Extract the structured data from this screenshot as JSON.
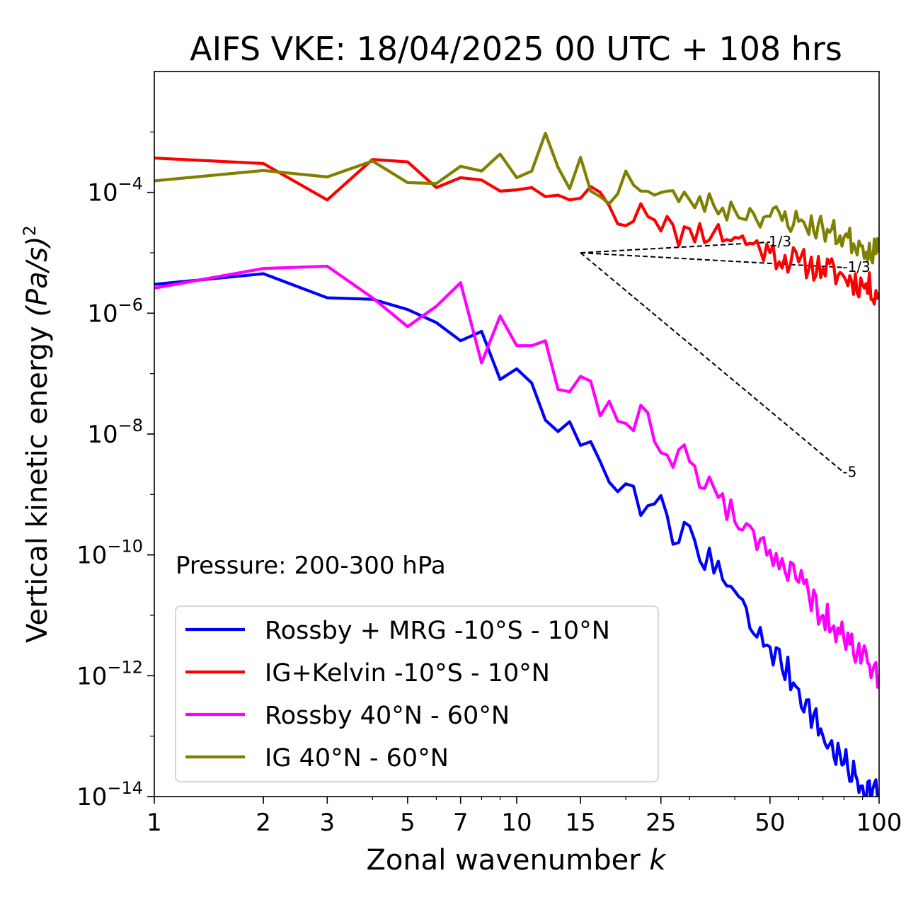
{
  "chart_data": {
    "type": "line",
    "title": "AIFS VKE: 18/04/2025 00 UTC + 108 hrs",
    "xlabel": "Zonal wavenumber",
    "xlabel_var": "k",
    "ylabel": "Vertical kinetic energy",
    "ylabel_unit": "(Pa/s)",
    "ylabel_unit_exp": "2",
    "x_scale": "log",
    "y_scale": "log",
    "xlim": [
      1,
      100
    ],
    "ylim": [
      1e-14,
      0.01
    ],
    "x_ticks": [
      1,
      2,
      3,
      5,
      7,
      10,
      15,
      25,
      50,
      100
    ],
    "x_tick_labels": [
      "1",
      "2",
      "3",
      "5",
      "7",
      "10",
      "15",
      "25",
      "50",
      "100"
    ],
    "y_ticks": [
      1e-14,
      1e-12,
      1e-10,
      1e-08,
      1e-06,
      0.0001
    ],
    "y_tick_labels": [
      {
        "base": "10",
        "exp": "−14"
      },
      {
        "base": "10",
        "exp": "−12"
      },
      {
        "base": "10",
        "exp": "−10"
      },
      {
        "base": "10",
        "exp": "−8"
      },
      {
        "base": "10",
        "exp": "−6"
      },
      {
        "base": "10",
        "exp": "−4"
      }
    ],
    "grid": false,
    "legend_position": "lower-left",
    "annotation": "Pressure: 200-300 hPa",
    "series": [
      {
        "name": "Rossby + MRG -10°S - 10°N",
        "color": "#0000ff",
        "anchors": [
          [
            1,
            3e-06
          ],
          [
            2,
            4.5e-06
          ],
          [
            3,
            1.8e-06
          ],
          [
            4,
            1.7e-06
          ],
          [
            5,
            1.15e-06
          ],
          [
            6,
            7e-07
          ],
          [
            7,
            3.5e-07
          ],
          [
            8,
            5e-07
          ],
          [
            9,
            8e-08
          ],
          [
            10,
            1.2e-07
          ],
          [
            11,
            7e-08
          ],
          [
            12,
            1.7e-08
          ],
          [
            13,
            1.1e-08
          ],
          [
            14,
            1.6e-08
          ],
          [
            15,
            6.5e-09
          ],
          [
            16,
            7.5e-09
          ],
          [
            17,
            3.5e-09
          ],
          [
            18,
            1.6e-09
          ],
          [
            20,
            1.5e-09
          ],
          [
            22,
            4.5e-10
          ],
          [
            24,
            7e-10
          ],
          [
            26,
            4.5e-10
          ],
          [
            28,
            1.6e-10
          ],
          [
            30,
            3e-10
          ],
          [
            35,
            5e-11
          ],
          [
            40,
            2.5e-11
          ],
          [
            45,
            5e-12
          ],
          [
            50,
            3e-12
          ],
          [
            60,
            6e-13
          ],
          [
            70,
            1e-13
          ],
          [
            80,
            3.5e-14
          ],
          [
            90,
            1.5e-14
          ],
          [
            100,
            1.1e-14
          ]
        ],
        "noise": 0.55,
        "seed": 7
      },
      {
        "name": "IG+Kelvin -10°S - 10°N",
        "color": "#ff0000",
        "anchors": [
          [
            1,
            0.00037
          ],
          [
            2,
            0.0003
          ],
          [
            3,
            7.5e-05
          ],
          [
            4,
            0.00035
          ],
          [
            5,
            0.00032
          ],
          [
            6,
            0.00012
          ],
          [
            7,
            0.000175
          ],
          [
            8,
            0.00016
          ],
          [
            9,
            0.000105
          ],
          [
            10,
            0.00011
          ],
          [
            11,
            0.00012
          ],
          [
            12,
            8.5e-05
          ],
          [
            13,
            9e-05
          ],
          [
            14,
            7.5e-05
          ],
          [
            15,
            8e-05
          ],
          [
            16,
            0.000125
          ],
          [
            17,
            0.0001
          ],
          [
            18,
            6e-05
          ],
          [
            20,
            2.8e-05
          ],
          [
            22,
            6.5e-05
          ],
          [
            24,
            3.5e-05
          ],
          [
            26,
            4e-05
          ],
          [
            28,
            1.3e-05
          ],
          [
            30,
            2.5e-05
          ],
          [
            35,
            2.2e-05
          ],
          [
            40,
            1.8e-05
          ],
          [
            45,
            1.4e-05
          ],
          [
            50,
            1e-05
          ],
          [
            60,
            7e-06
          ],
          [
            70,
            5.5e-06
          ],
          [
            80,
            4e-06
          ],
          [
            90,
            3e-06
          ],
          [
            100,
            2.2e-06
          ]
        ],
        "noise": 0.5,
        "seed": 11
      },
      {
        "name": "Rossby 40°N - 60°N",
        "color": "#ff00ff",
        "anchors": [
          [
            1,
            2.6e-06
          ],
          [
            2,
            5.5e-06
          ],
          [
            3,
            6e-06
          ],
          [
            4,
            1.8e-06
          ],
          [
            5,
            6e-07
          ],
          [
            6,
            1.3e-06
          ],
          [
            7,
            3.2e-06
          ],
          [
            8,
            1.5e-07
          ],
          [
            9,
            9e-07
          ],
          [
            10,
            2.9e-07
          ],
          [
            11,
            2.9e-07
          ],
          [
            12,
            3.5e-07
          ],
          [
            13,
            5.5e-08
          ],
          [
            14,
            5e-08
          ],
          [
            15,
            9e-08
          ],
          [
            16,
            7.5e-08
          ],
          [
            17,
            2e-08
          ],
          [
            18,
            3.5e-08
          ],
          [
            20,
            1.5e-08
          ],
          [
            22,
            3e-08
          ],
          [
            24,
            7.5e-09
          ],
          [
            26,
            4.5e-09
          ],
          [
            28,
            5.5e-09
          ],
          [
            30,
            3.5e-09
          ],
          [
            35,
            1.3e-09
          ],
          [
            40,
            3.5e-10
          ],
          [
            45,
            2.5e-10
          ],
          [
            50,
            1.2e-10
          ],
          [
            60,
            3.5e-11
          ],
          [
            70,
            1e-11
          ],
          [
            80,
            4e-12
          ],
          [
            90,
            2.2e-12
          ],
          [
            100,
            1e-12
          ]
        ],
        "noise": 0.55,
        "seed": 19
      },
      {
        "name": "IG 40°N - 60°N",
        "color": "#808000",
        "anchors": [
          [
            1,
            0.000155
          ],
          [
            2,
            0.00023
          ],
          [
            3,
            0.00018
          ],
          [
            4,
            0.00033
          ],
          [
            5,
            0.000145
          ],
          [
            6,
            0.00014
          ],
          [
            7,
            0.00027
          ],
          [
            8,
            0.000225
          ],
          [
            9,
            0.00043
          ],
          [
            10,
            0.000175
          ],
          [
            11,
            0.000225
          ],
          [
            12,
            0.00095
          ],
          [
            13,
            0.00026
          ],
          [
            14,
            0.000115
          ],
          [
            15,
            0.00038
          ],
          [
            16,
            0.000105
          ],
          [
            17,
            8.5e-05
          ],
          [
            18,
            6.5e-05
          ],
          [
            20,
            0.000225
          ],
          [
            22,
            0.000105
          ],
          [
            24,
            9e-05
          ],
          [
            26,
            0.000105
          ],
          [
            28,
            7e-05
          ],
          [
            30,
            7.5e-05
          ],
          [
            35,
            6e-05
          ],
          [
            40,
            5e-05
          ],
          [
            45,
            4.5e-05
          ],
          [
            50,
            4e-05
          ],
          [
            60,
            3.3e-05
          ],
          [
            70,
            2.5e-05
          ],
          [
            80,
            1.8e-05
          ],
          [
            90,
            1.3e-05
          ],
          [
            100,
            1e-05
          ]
        ],
        "noise": 0.45,
        "seed": 23
      }
    ],
    "reference_slopes": [
      {
        "label": "-1/3",
        "origin": [
          15,
          1e-05
        ],
        "end": [
          80,
          5.7e-06
        ]
      },
      {
        "label": "1/3",
        "origin": [
          15,
          1e-05
        ],
        "end": [
          50,
          1.5e-05
        ]
      },
      {
        "label": "-5",
        "origin": [
          15,
          1e-05
        ],
        "end": [
          80,
          2.3e-09
        ]
      }
    ]
  }
}
